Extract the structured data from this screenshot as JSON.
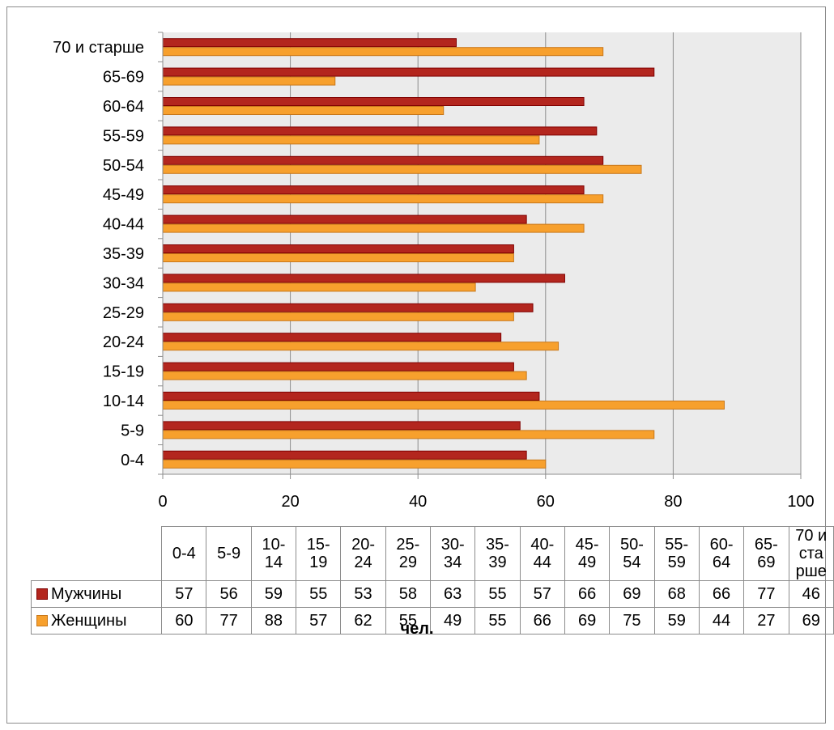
{
  "chart_data": {
    "type": "bar",
    "orientation": "horizontal",
    "categories": [
      "0-4",
      "5-9",
      "10-14",
      "15-19",
      "20-24",
      "25-29",
      "30-34",
      "35-39",
      "40-44",
      "45-49",
      "50-54",
      "55-59",
      "60-64",
      "65-69",
      "70 и старше"
    ],
    "table_headers": [
      "0-4",
      "5-9",
      "10-\n14",
      "15-\n19",
      "20-\n24",
      "25-\n29",
      "30-\n34",
      "35-\n39",
      "40-\n44",
      "45-\n49",
      "50-\n54",
      "55-\n59",
      "60-\n64",
      "65-\n69",
      "70 и\nста\nрше"
    ],
    "series": [
      {
        "name": "Мужчины",
        "color": "#b3261e",
        "values": [
          57,
          56,
          59,
          55,
          53,
          58,
          63,
          55,
          57,
          66,
          69,
          68,
          66,
          77,
          46
        ]
      },
      {
        "name": "Женщины",
        "color": "#f7a02d",
        "values": [
          60,
          77,
          88,
          57,
          62,
          55,
          49,
          55,
          66,
          69,
          75,
          59,
          44,
          27,
          69
        ]
      }
    ],
    "xlim": [
      0,
      100
    ],
    "x_ticks": [
      0,
      20,
      40,
      60,
      80,
      100
    ],
    "xlabel": "чел.",
    "ylabel": "",
    "title": "",
    "grid": true,
    "legend": "data-table"
  }
}
